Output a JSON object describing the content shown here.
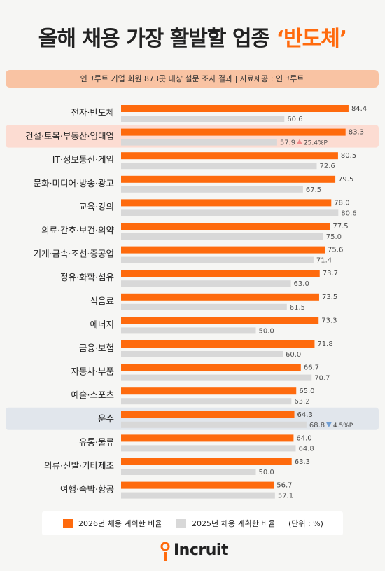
{
  "title": {
    "main": "올해 채용 가장 활발할 업종 ",
    "highlight": "‘반도체’"
  },
  "subtitle": "인크루트 기업 회원 873곳 대상 설문 조사 결과 | 자료제공 : 인크루트",
  "colors": {
    "series2026": "#fe6a0d",
    "series2025": "#d8d8d8",
    "highlight_row_top": "#fcdcd2",
    "highlight_row_bottom": "#e1e6ec",
    "up_arrow": "#f08a8a",
    "down_arrow": "#6f9ed4"
  },
  "legend": {
    "item1": "2026년 채용 계획한 비율",
    "item2": "2025년 채용 계획한 비율",
    "unit": "(단위 : %)"
  },
  "logo": {
    "text": "Incruit",
    "icon": "incruit-logo-icon"
  },
  "chart_data": {
    "type": "bar",
    "orientation": "horizontal",
    "unit": "%",
    "categories": [
      "전자·반도체",
      "건설·토목·부동산·임대업",
      "IT·정보통신·게임",
      "문화·미디어·방송·광고",
      "교육·강의",
      "의료·간호·보건·의약",
      "기계·금속·조선·중공업",
      "정유·화학·섬유",
      "식음료",
      "에너지",
      "금융·보험",
      "자동차·부품",
      "예술·스포츠",
      "운수",
      "유통·물류",
      "의류·신발·기타제조",
      "여행·숙박·항공"
    ],
    "series": [
      {
        "name": "2026년 채용 계획한 비율",
        "values": [
          84.4,
          83.3,
          80.5,
          79.5,
          78.0,
          77.5,
          75.6,
          73.7,
          73.5,
          73.3,
          71.8,
          66.7,
          65.0,
          64.3,
          64.0,
          63.3,
          56.7
        ]
      },
      {
        "name": "2025년 채용 계획한 비율",
        "values": [
          60.6,
          57.9,
          72.6,
          67.5,
          80.6,
          75.0,
          71.4,
          63.0,
          61.5,
          50.0,
          60.0,
          70.7,
          63.2,
          68.8,
          64.8,
          50.0,
          57.1
        ]
      }
    ],
    "value_labels": {
      "2026": [
        "84.4",
        "83.3",
        "80.5",
        "79.5",
        "78.0",
        "77.5",
        "75.6",
        "73.7",
        "73.5",
        "73.3",
        "71.8",
        "66.7",
        "65.0",
        "64.3",
        "64.0",
        "63.3",
        "56.7"
      ],
      "2025": [
        "60.6",
        "57.9",
        "72.6",
        "67.5",
        "80.6",
        "75.0",
        "71.4",
        "63.0",
        "61.5",
        "50.0",
        "60.0",
        "70.7",
        "63.2",
        "68.8",
        "64.8",
        "50.0",
        "57.1"
      ]
    },
    "highlights": [
      {
        "category": "건설·토목·부동산·임대업",
        "style": "top",
        "change": "25.4%P",
        "direction": "up"
      },
      {
        "category": "운수",
        "style": "bottom",
        "change": "4.5%P",
        "direction": "down"
      }
    ]
  }
}
